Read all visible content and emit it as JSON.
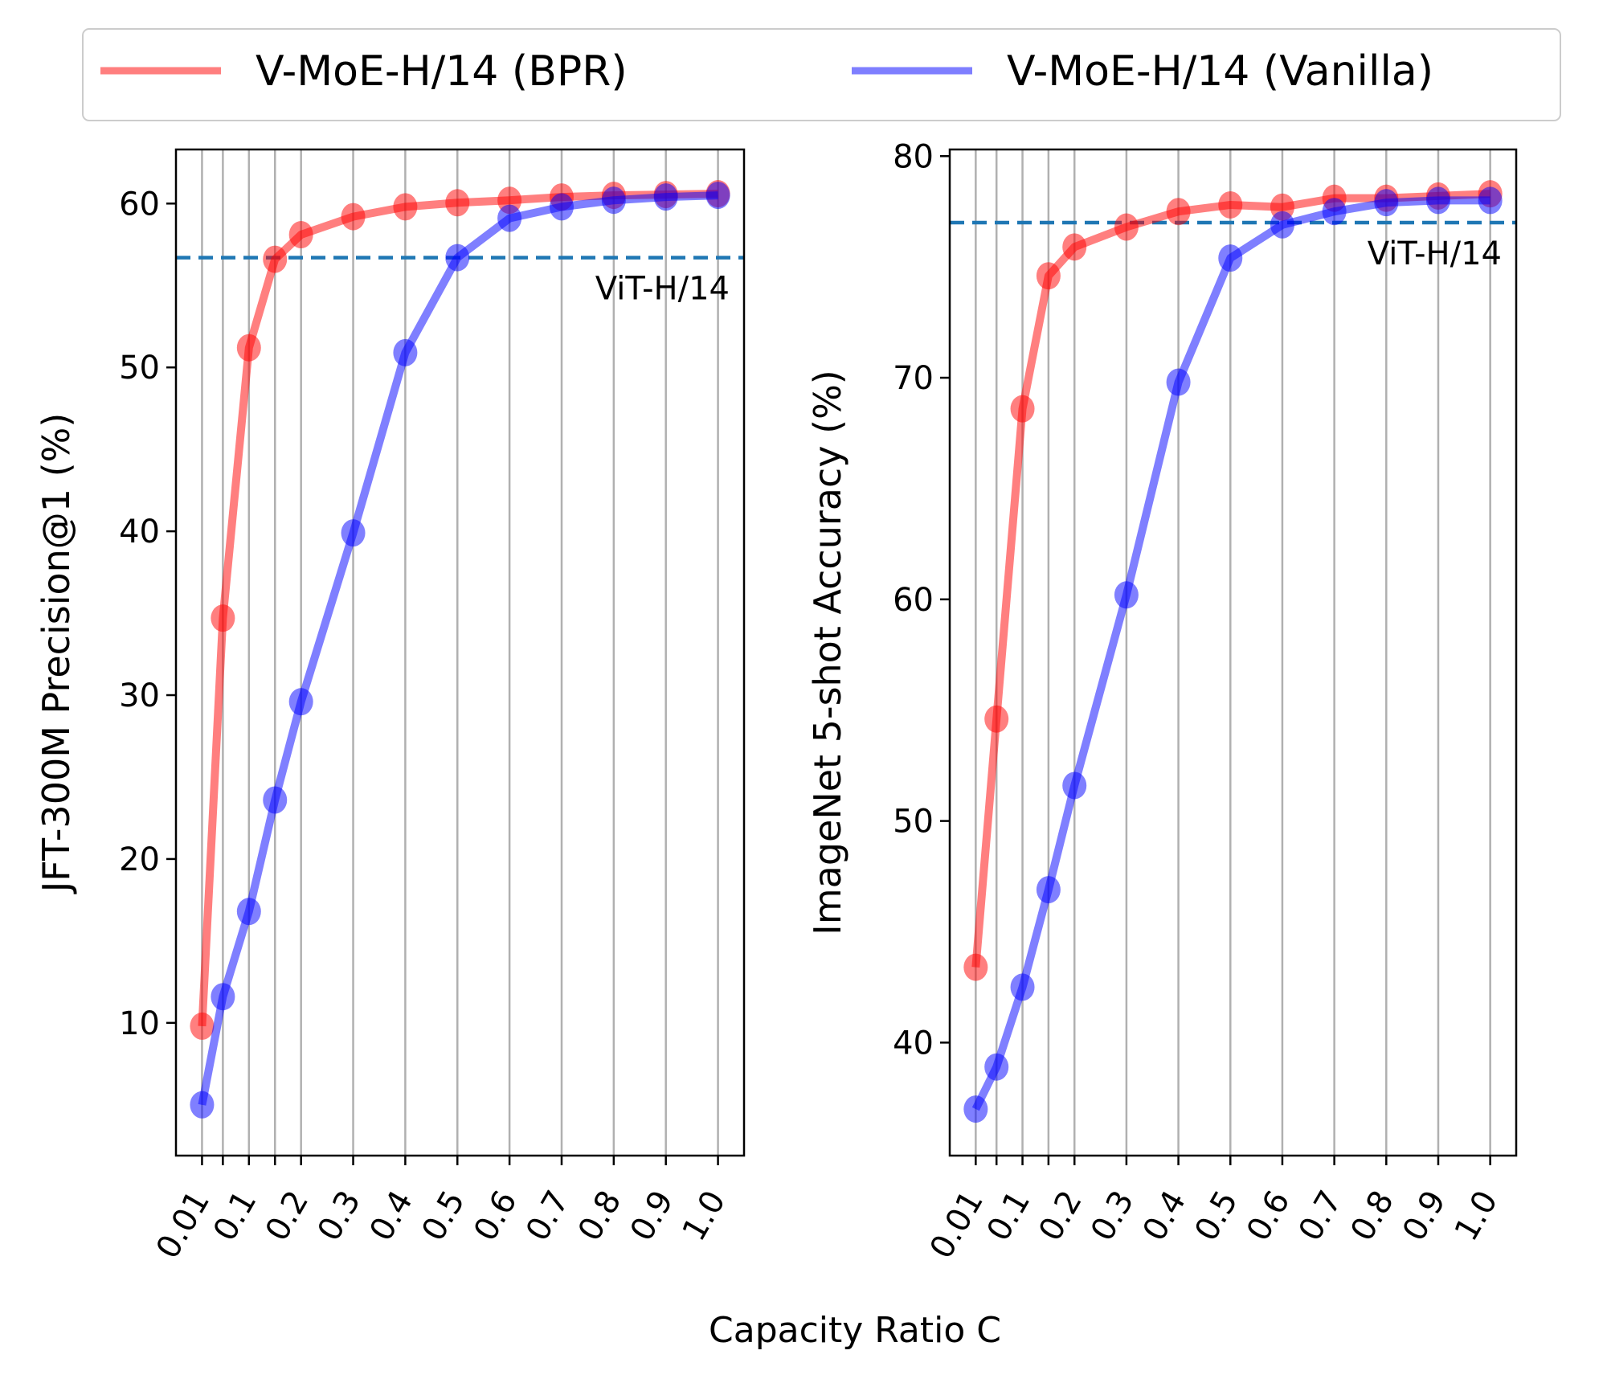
{
  "chart_data": [
    {
      "type": "line",
      "ylabel": "JFT-300M Precision@1 (%)",
      "x": [
        0.01,
        0.05,
        0.1,
        0.15,
        0.2,
        0.3,
        0.4,
        0.5,
        0.6,
        0.7,
        0.8,
        0.9,
        1.0
      ],
      "xtick_labels": [
        "0.01",
        "0.1",
        "0.2",
        "0.3",
        "0.4",
        "0.5",
        "0.6",
        "0.7",
        "0.8",
        "0.9",
        "1.0"
      ],
      "xtick_label_values": [
        0.01,
        0.1,
        0.2,
        0.3,
        0.4,
        0.5,
        0.6,
        0.7,
        0.8,
        0.9,
        1.0
      ],
      "yticks": [
        10,
        20,
        30,
        40,
        50,
        60
      ],
      "xlim": [
        -0.04,
        1.05
      ],
      "ylim": [
        1.9,
        63.3
      ],
      "grid": "vertical",
      "series": [
        {
          "name": "V-MoE-H/14 (BPR)",
          "color": "#ff0000",
          "values": [
            9.8,
            34.7,
            51.2,
            56.6,
            58.1,
            59.2,
            59.8,
            60.05,
            60.2,
            60.4,
            60.5,
            60.55,
            60.6
          ]
        },
        {
          "name": "V-MoE-H/14 (Vanilla)",
          "color": "#0000ff",
          "values": [
            5.0,
            11.6,
            16.8,
            23.6,
            29.6,
            39.9,
            50.9,
            56.7,
            59.1,
            59.8,
            60.2,
            60.4,
            60.5
          ]
        }
      ],
      "reference_line": {
        "label": "ViT-H/14",
        "value": 56.7,
        "color": "#1f77b4"
      }
    },
    {
      "type": "line",
      "ylabel": "ImageNet 5-shot Accuracy (%)",
      "x": [
        0.01,
        0.05,
        0.1,
        0.15,
        0.2,
        0.3,
        0.4,
        0.5,
        0.6,
        0.7,
        0.8,
        0.9,
        1.0
      ],
      "xtick_labels": [
        "0.01",
        "0.1",
        "0.2",
        "0.3",
        "0.4",
        "0.5",
        "0.6",
        "0.7",
        "0.8",
        "0.9",
        "1.0"
      ],
      "xtick_label_values": [
        0.01,
        0.1,
        0.2,
        0.3,
        0.4,
        0.5,
        0.6,
        0.7,
        0.8,
        0.9,
        1.0
      ],
      "yticks": [
        40,
        50,
        60,
        70,
        80
      ],
      "xlim": [
        -0.04,
        1.05
      ],
      "ylim": [
        34.9,
        80.3
      ],
      "grid": "vertical",
      "series": [
        {
          "name": "V-MoE-H/14 (BPR)",
          "color": "#ff0000",
          "values": [
            43.4,
            54.6,
            68.6,
            74.6,
            75.9,
            76.8,
            77.5,
            77.8,
            77.7,
            78.1,
            78.1,
            78.2,
            78.3
          ]
        },
        {
          "name": "V-MoE-H/14 (Vanilla)",
          "color": "#0000ff",
          "values": [
            37.0,
            38.9,
            42.5,
            46.9,
            51.6,
            60.2,
            69.8,
            75.4,
            76.9,
            77.5,
            77.9,
            78.0,
            78.0
          ]
        }
      ],
      "reference_line": {
        "label": "ViT-H/14",
        "value": 77.0,
        "color": "#1f77b4"
      }
    }
  ],
  "xlabel": "Capacity Ratio C",
  "legend": {
    "placement": "top",
    "entries": [
      "V-MoE-H/14 (BPR)",
      "V-MoE-H/14 (Vanilla)"
    ]
  }
}
